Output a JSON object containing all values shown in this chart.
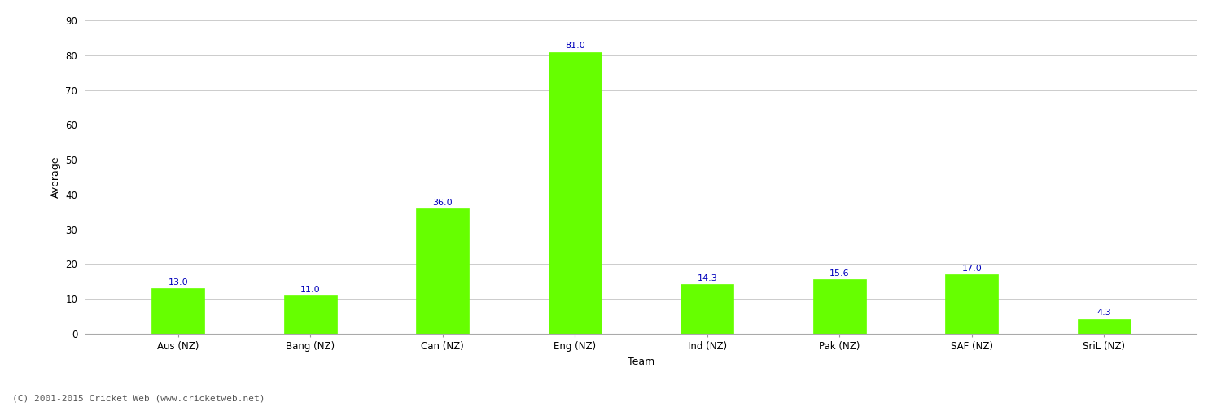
{
  "categories": [
    "Aus (NZ)",
    "Bang (NZ)",
    "Can (NZ)",
    "Eng (NZ)",
    "Ind (NZ)",
    "Pak (NZ)",
    "SAF (NZ)",
    "SriL (NZ)"
  ],
  "values": [
    13.0,
    11.0,
    36.0,
    81.0,
    14.3,
    15.6,
    17.0,
    4.3
  ],
  "bar_color": "#66ff00",
  "bar_edge_color": "#66ff00",
  "label_color": "#0000bb",
  "xlabel": "Team",
  "ylabel": "Average",
  "ylim": [
    0,
    90
  ],
  "yticks": [
    0,
    10,
    20,
    30,
    40,
    50,
    60,
    70,
    80,
    90
  ],
  "background_color": "#ffffff",
  "grid_color": "#cccccc",
  "label_fontsize": 8,
  "axis_label_fontsize": 9,
  "tick_fontsize": 8.5,
  "footer_text": "(C) 2001-2015 Cricket Web (www.cricketweb.net)",
  "footer_fontsize": 8,
  "bar_width": 0.4
}
